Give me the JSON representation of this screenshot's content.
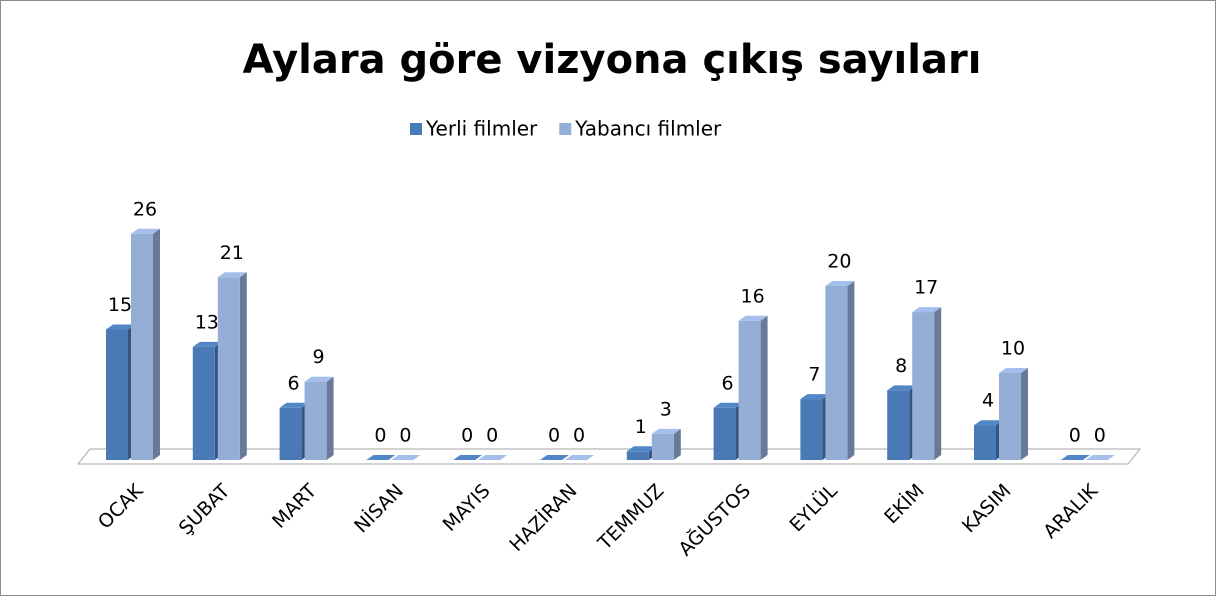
{
  "chart_data": {
    "type": "bar",
    "title": "Aylara göre vizyona çıkış sayıları",
    "categories": [
      "OCAK",
      "ŞUBAT",
      "MART",
      "NİSAN",
      "MAYIS",
      "HAZİRAN",
      "TEMMUZ",
      "AĞUSTOS",
      "EYLÜL",
      "EKİM",
      "KASIM",
      "ARALIK"
    ],
    "series": [
      {
        "name": "Yerli filmler",
        "color": "#4a7ab5",
        "values": [
          15,
          13,
          6,
          0,
          0,
          0,
          1,
          6,
          7,
          8,
          4,
          0
        ]
      },
      {
        "name": "Yabancı filmler",
        "color": "#95aed6",
        "values": [
          26,
          21,
          9,
          0,
          0,
          0,
          3,
          16,
          20,
          17,
          10,
          0
        ]
      }
    ],
    "legend": "top"
  }
}
